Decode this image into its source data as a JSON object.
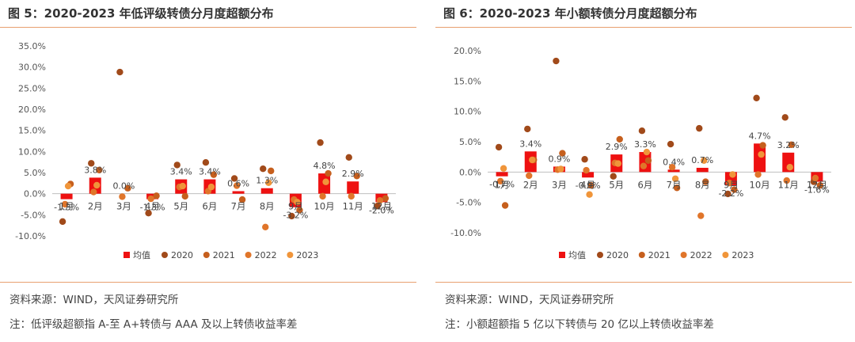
{
  "left": {
    "title": "图 5：2020-2023 年低评级转债分月度超额分布",
    "source": "资料来源：WIND，天风证券研究所",
    "note": "注：低评级超额指 A-至 A+转债与 AAA 及以上转债收益率差"
  },
  "right": {
    "title": "图 6：2020-2023 年小额转债分月度超额分布",
    "source": "资料来源：WIND，天风证券研究所",
    "note": "注：小额超额指 5 亿以下转债与 20 亿以上转债收益率差"
  },
  "colors": {
    "avg": "#ee1111",
    "s2020": "#a14a1a",
    "s2021": "#c65f1d",
    "s2022": "#e0752a",
    "s2023": "#f0953a"
  },
  "chart_data": [
    {
      "type": "bar",
      "title": "图 5：2020-2023 年低评级转债分月度超额分布",
      "categories": [
        "1月",
        "2月",
        "3月",
        "4月",
        "5月",
        "6月",
        "7月",
        "8月",
        "9月",
        "10月",
        "11月",
        "12月"
      ],
      "ylim": [
        -10,
        35
      ],
      "yticks": [
        -10,
        -5,
        0,
        5,
        10,
        15,
        20,
        25,
        30,
        35
      ],
      "ytick_labels": [
        "-10.0%",
        "-5.0%",
        "0.0%",
        "5.0%",
        "10.0%",
        "15.0%",
        "20.0%",
        "25.0%",
        "30.0%",
        "35.0%"
      ],
      "bar_series": {
        "name": "均值",
        "values": [
          -1.3,
          3.8,
          0.0,
          -1.3,
          3.4,
          3.4,
          0.6,
          1.3,
          -3.2,
          4.8,
          2.9,
          -2.0
        ]
      },
      "bar_labels": [
        "-1.3%",
        "3.8%",
        "0.0%",
        "-1.3%",
        "3.4%",
        "3.4%",
        "0.6%",
        "1.3%",
        "-3.2%",
        "4.8%",
        "2.9%",
        "-2.0%"
      ],
      "series": [
        {
          "name": "2020",
          "values": [
            -6.6,
            7.2,
            28.8,
            -4.6,
            6.8,
            7.4,
            3.6,
            5.9,
            -5.3,
            12.1,
            8.6,
            -2.9
          ]
        },
        {
          "name": "2021",
          "values": [
            2.3,
            5.6,
            1.3,
            -0.5,
            -0.6,
            4.5,
            -1.4,
            5.4,
            -3.9,
            4.8,
            4.2,
            -1.1
          ]
        },
        {
          "name": "2022",
          "values": [
            -2.5,
            0.4,
            -0.7,
            -1.2,
            1.6,
            0.6,
            1.9,
            -7.9,
            -1.4,
            -0.6,
            -0.6,
            -1.6
          ]
        },
        {
          "name": "2023",
          "values": [
            1.8,
            2.0,
            null,
            null,
            1.8,
            1.6,
            null,
            2.6,
            -2.0,
            2.8,
            null,
            null
          ]
        }
      ],
      "legend": [
        "均值",
        "2020",
        "2021",
        "2022",
        "2023"
      ]
    },
    {
      "type": "bar",
      "title": "图 6：2020-2023 年小额转债分月度超额分布",
      "categories": [
        "1月",
        "2月",
        "3月",
        "4月",
        "5月",
        "6月",
        "7月",
        "8月",
        "9月",
        "10月",
        "11月",
        "12月"
      ],
      "ylim": [
        -10,
        20
      ],
      "yticks": [
        -10,
        -5,
        0,
        5,
        10,
        15,
        20
      ],
      "ytick_labels": [
        "-10.0%",
        "-5.0%",
        "0.0%",
        "5.0%",
        "10.0%",
        "15.0%",
        "20.0%"
      ],
      "bar_series": {
        "name": "均值",
        "values": [
          -0.7,
          3.4,
          0.9,
          -0.9,
          2.9,
          3.3,
          0.4,
          0.7,
          -2.2,
          4.7,
          3.2,
          -1.6
        ]
      },
      "bar_labels": [
        "-0.7%",
        "3.4%",
        "0.9%",
        "-0.9%",
        "2.9%",
        "3.3%",
        "0.4%",
        "0.7%",
        "-2.2%",
        "4.7%",
        "3.2%",
        "-1.6%"
      ],
      "series": [
        {
          "name": "2020",
          "values": [
            4.1,
            7.1,
            18.3,
            2.1,
            -0.7,
            6.8,
            4.6,
            7.2,
            -3.6,
            12.2,
            9.0,
            -1.6
          ]
        },
        {
          "name": "2021",
          "values": [
            -5.5,
            2.0,
            3.1,
            -2.2,
            5.4,
            1.9,
            -2.6,
            -1.6,
            -2.9,
            4.4,
            4.5,
            -2.2
          ]
        },
        {
          "name": "2022",
          "values": [
            -1.5,
            -0.6,
            0.4,
            0.3,
            1.5,
            1.0,
            0.8,
            -7.2,
            -1.8,
            -0.4,
            -1.4,
            -1.0
          ]
        },
        {
          "name": "2023",
          "values": [
            0.6,
            2.0,
            0.5,
            -3.7,
            1.4,
            3.3,
            -1.1,
            1.9,
            -0.4,
            2.9,
            0.8,
            null
          ]
        }
      ],
      "legend": [
        "均值",
        "2020",
        "2021",
        "2022",
        "2023"
      ]
    }
  ]
}
